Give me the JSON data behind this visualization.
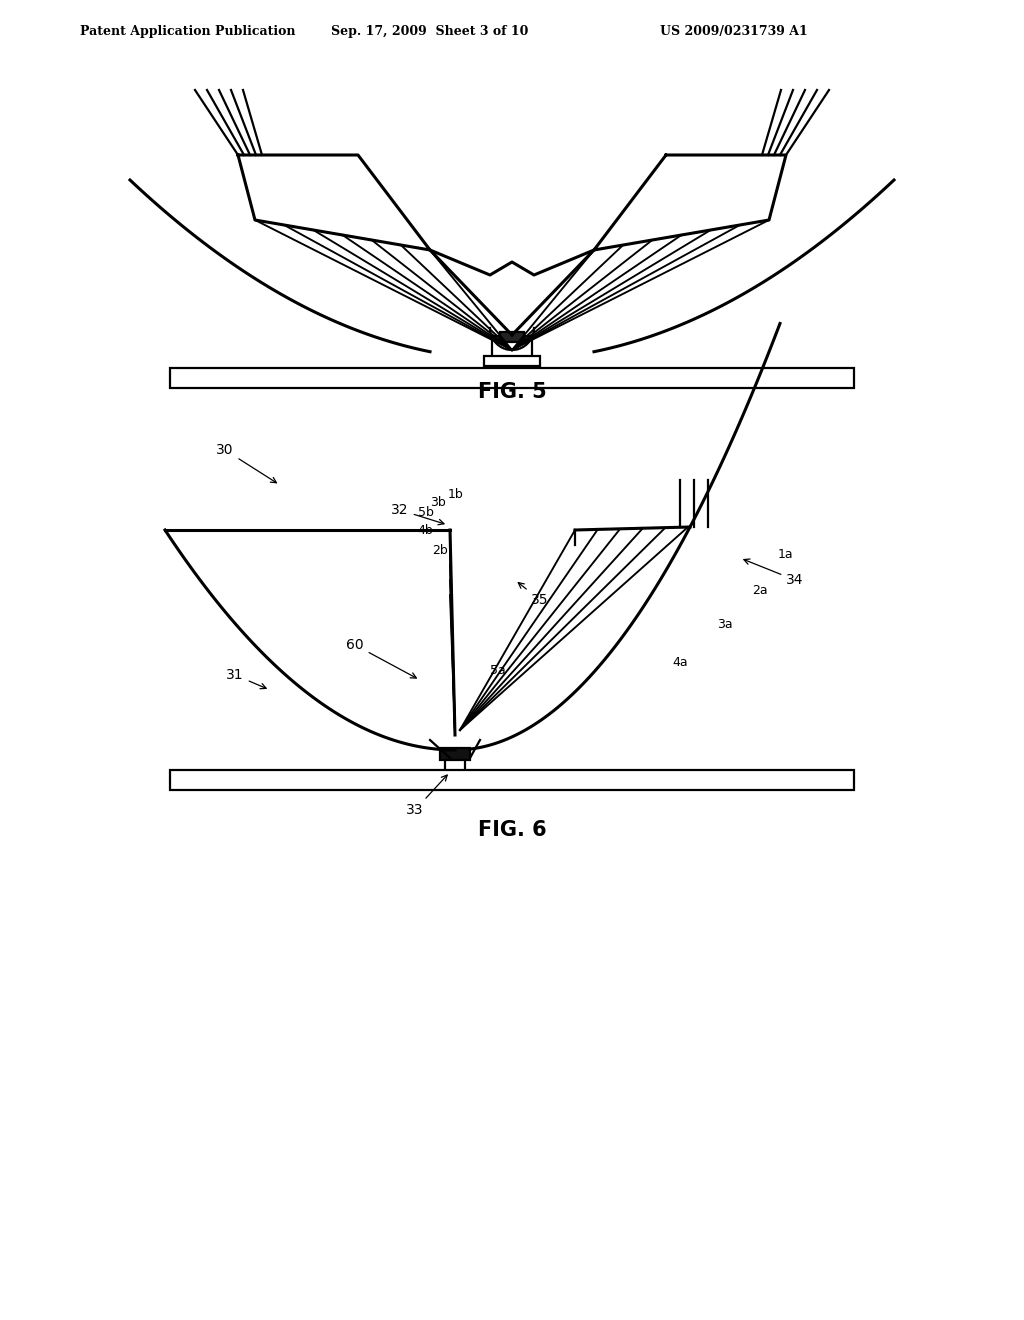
{
  "bg": "#ffffff",
  "lc": "#000000",
  "lw": 1.6,
  "tlw": 2.2,
  "header_left": "Patent Application Publication",
  "header_mid": "Sep. 17, 2009  Sheet 3 of 10",
  "header_right": "US 2009/0231739 A1",
  "fig5_label": "FIG. 5",
  "fig6_label": "FIG. 6",
  "hfs": 9,
  "fig_fs": 15,
  "lbl_fs": 10
}
